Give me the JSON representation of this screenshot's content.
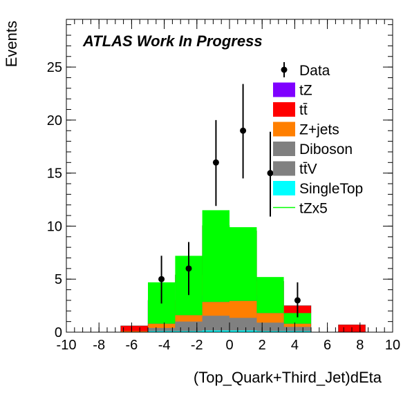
{
  "chart_data": {
    "type": "bar",
    "subtype": "stacked-histogram",
    "annotation": "ATLAS Work In Progress",
    "xlabel": "(Top_Quark+Third_Jet)dEta",
    "ylabel": "Events",
    "xlim": [
      -10,
      10
    ],
    "ylim": [
      0,
      29.5
    ],
    "grid": false,
    "legend_position": "top-right",
    "x_ticks": [
      "-10",
      "-8",
      "-6",
      "-4",
      "-2",
      "0",
      "2",
      "4",
      "6",
      "8",
      "10"
    ],
    "y_ticks": [
      "0",
      "5",
      "10",
      "15",
      "20",
      "25"
    ],
    "bin_edges": [
      -10,
      -8.33,
      -6.67,
      -5,
      -3.33,
      -1.67,
      0,
      1.67,
      3.33,
      5,
      6.67,
      8.33,
      10
    ],
    "series": [
      {
        "name": "SingleTop",
        "color": "#00ffff",
        "values": [
          0,
          0,
          0,
          0.1,
          0.1,
          0.15,
          0.15,
          0.1,
          0.1,
          0,
          0,
          0
        ]
      },
      {
        "name": "tt̄V",
        "color": "#808080",
        "values": [
          0,
          0,
          0,
          0.1,
          0.2,
          0.3,
          0.3,
          0.2,
          0.1,
          0,
          0,
          0
        ]
      },
      {
        "name": "Diboson",
        "color": "#808080",
        "values": [
          0,
          0,
          0,
          0.2,
          0.7,
          1.1,
          0.9,
          0.6,
          0.3,
          0,
          0,
          0
        ]
      },
      {
        "name": "Z+jets",
        "color": "#ff7f00",
        "values": [
          0,
          0,
          0.1,
          0.4,
          0.6,
          1.3,
          1.6,
          0.9,
          0.3,
          0,
          0,
          0
        ]
      },
      {
        "name": "tZ",
        "color": "#7f00ff",
        "values": [
          0,
          0,
          0,
          0.1,
          0.3,
          0.6,
          0.5,
          0.4,
          0.1,
          0,
          0,
          0
        ]
      },
      {
        "name": "tt̄",
        "color": "#ff0000",
        "values": [
          0,
          0,
          0.5,
          2.1,
          3.5,
          6.6,
          6.1,
          2.6,
          1.6,
          0,
          0.7,
          0
        ]
      }
    ],
    "stack_order_note": "bottom to top",
    "extra_series": [
      {
        "name": "tZx5",
        "color": "#00ff00",
        "values": [
          0,
          0,
          0,
          4.7,
          7.2,
          11.5,
          9.9,
          5.2,
          1.8,
          0,
          0,
          0
        ]
      }
    ],
    "data": {
      "name": "Data",
      "x": [
        -4.17,
        -2.5,
        -0.83,
        0.83,
        2.5,
        4.17
      ],
      "y": [
        5,
        6,
        16,
        19,
        15,
        3
      ],
      "err_low": [
        2.3,
        2.5,
        4.1,
        4.5,
        4.1,
        1.6
      ],
      "err_high": [
        2.2,
        2.5,
        4.0,
        4.4,
        3.9,
        1.7
      ]
    },
    "legend_entries": [
      "Data",
      "tZ",
      "tt̄",
      "Z+jets",
      "Diboson",
      "tt̄V",
      "SingleTop",
      "tZx5"
    ]
  }
}
